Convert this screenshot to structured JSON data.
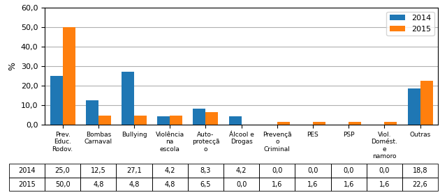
{
  "chart_data": {
    "type": "bar",
    "categories": [
      "Prev.\nEduc.\nRodov.",
      "Bombas\nCarnaval",
      "Bullying",
      "Violência\nna\nescola",
      "Auto-\nprotecçã\no",
      "Álcool e\nDrogas",
      "Prevençã\no\nCriminal",
      "PES",
      "PSP",
      "Viol.\nDomést.\ne\nnamoro",
      "Outras"
    ],
    "series": [
      {
        "name": "2014",
        "values": [
          25.0,
          12.5,
          27.1,
          4.2,
          8.3,
          4.2,
          0.0,
          0.0,
          0.0,
          0.0,
          18.8
        ],
        "value_labels": [
          "25,0",
          "12,5",
          "27,1",
          "4,2",
          "8,3",
          "4,2",
          "0,0",
          "0,0",
          "0,0",
          "0,0",
          "18,8"
        ]
      },
      {
        "name": "2015",
        "values": [
          50.0,
          4.8,
          4.8,
          4.8,
          6.5,
          0.0,
          1.6,
          1.6,
          1.6,
          1.6,
          22.6
        ],
        "value_labels": [
          "50,0",
          "4,8",
          "4,8",
          "4,8",
          "6,5",
          "0,0",
          "1,6",
          "1,6",
          "1,6",
          "1,6",
          "22,6"
        ]
      }
    ],
    "ylabel": "%",
    "ylim": [
      0,
      60
    ],
    "yticks": [
      {
        "value": 0,
        "label": "0,0"
      },
      {
        "value": 10,
        "label": "10,0"
      },
      {
        "value": 20,
        "label": "20,0"
      },
      {
        "value": 30,
        "label": "30,0"
      },
      {
        "value": 40,
        "label": "40,0"
      },
      {
        "value": 50,
        "label": "50,0"
      },
      {
        "value": 60,
        "label": "60,0"
      }
    ],
    "grid": true,
    "legend": "upper right"
  }
}
